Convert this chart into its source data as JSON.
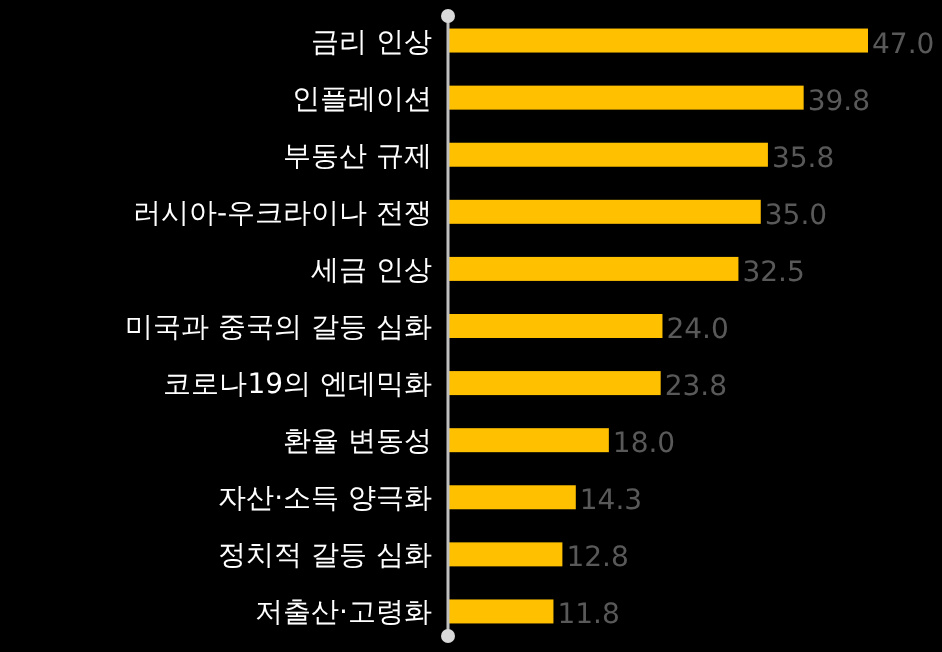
{
  "chart_data": {
    "type": "bar",
    "orientation": "horizontal",
    "value_labels": [
      "47.0",
      "39.8",
      "35.8",
      "35.0",
      "32.5",
      "24.0",
      "23.8",
      "18.0",
      "14.3",
      "12.8",
      "11.8"
    ],
    "categories": [
      "금리 인상",
      "인플레이션",
      "부동산 규제",
      "러시아-우크라이나 전쟁",
      "세금 인상",
      "미국과 중국의 갈등 심화",
      "코로나19의 엔데믹화",
      "환율 변동성",
      "자산·소득 양극화",
      "정치적 갈등 심화",
      "저출산·고령화"
    ],
    "values": [
      47.0,
      39.8,
      35.8,
      35.0,
      32.5,
      24.0,
      23.8,
      18.0,
      14.3,
      12.8,
      11.8
    ],
    "color": "#ffc000"
  }
}
